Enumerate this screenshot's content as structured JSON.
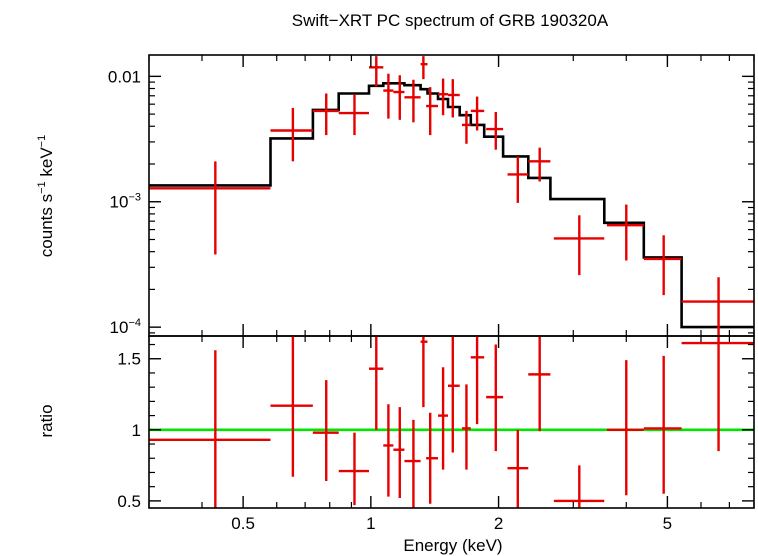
{
  "chart_data": {
    "type": "scatter",
    "title": "Swift−XRT PC spectrum of GRB 190320A",
    "xlabel": "Energy (keV)",
    "x_scale": "log",
    "xlim": [
      0.3,
      8.0
    ],
    "x_ticks": [
      {
        "value": 0.5,
        "label": "0.5"
      },
      {
        "value": 1,
        "label": "1"
      },
      {
        "value": 2,
        "label": "2"
      },
      {
        "value": 5,
        "label": "5"
      }
    ],
    "colors": {
      "data": "#e60000",
      "model": "#000000",
      "unity": "#00e600",
      "frame": "#000000"
    },
    "spectrum": {
      "ylabel_parts": [
        "counts s",
        "−1",
        " keV",
        "−1"
      ],
      "y_scale": "log",
      "ylim": [
        8.5e-05,
        0.0148
      ],
      "y_ticks": [
        {
          "value": 0.01,
          "label": "0.01"
        },
        {
          "value": 0.001,
          "base": "10",
          "exp": "−3"
        },
        {
          "value": 0.0001,
          "base": "10",
          "exp": "−4"
        }
      ],
      "data": [
        {
          "x": 0.43,
          "xlo": 0.3,
          "xhi": 0.58,
          "y": 0.00128,
          "ylo": 0.00038,
          "yhi": 0.0021
        },
        {
          "x": 0.655,
          "xlo": 0.58,
          "xhi": 0.73,
          "y": 0.0037,
          "ylo": 0.0021,
          "yhi": 0.0056
        },
        {
          "x": 0.785,
          "xlo": 0.73,
          "xhi": 0.84,
          "y": 0.0053,
          "ylo": 0.0034,
          "yhi": 0.0073
        },
        {
          "x": 0.915,
          "xlo": 0.84,
          "xhi": 0.99,
          "y": 0.0051,
          "ylo": 0.0034,
          "yhi": 0.0072
        },
        {
          "x": 1.03,
          "xlo": 0.99,
          "xhi": 1.07,
          "y": 0.0118,
          "ylo": 0.0083,
          "yhi": 0.0145
        },
        {
          "x": 1.1,
          "xlo": 1.07,
          "xhi": 1.13,
          "y": 0.0077,
          "ylo": 0.0046,
          "yhi": 0.0105
        },
        {
          "x": 1.17,
          "xlo": 1.13,
          "xhi": 1.2,
          "y": 0.0075,
          "ylo": 0.0045,
          "yhi": 0.0102
        },
        {
          "x": 1.26,
          "xlo": 1.2,
          "xhi": 1.31,
          "y": 0.0068,
          "ylo": 0.0043,
          "yhi": 0.0094
        },
        {
          "x": 1.33,
          "xlo": 1.31,
          "xhi": 1.36,
          "y": 0.0125,
          "ylo": 0.0095,
          "yhi": 0.0145
        },
        {
          "x": 1.38,
          "xlo": 1.35,
          "xhi": 1.44,
          "y": 0.0058,
          "ylo": 0.0034,
          "yhi": 0.0082
        },
        {
          "x": 1.48,
          "xlo": 1.44,
          "xhi": 1.52,
          "y": 0.0072,
          "ylo": 0.0049,
          "yhi": 0.0096
        },
        {
          "x": 1.56,
          "xlo": 1.52,
          "xhi": 1.62,
          "y": 0.0071,
          "ylo": 0.0047,
          "yhi": 0.0095
        },
        {
          "x": 1.68,
          "xlo": 1.64,
          "xhi": 1.72,
          "y": 0.0041,
          "ylo": 0.0029,
          "yhi": 0.0053
        },
        {
          "x": 1.78,
          "xlo": 1.72,
          "xhi": 1.85,
          "y": 0.0053,
          "ylo": 0.0037,
          "yhi": 0.0069
        },
        {
          "x": 1.97,
          "xlo": 1.87,
          "xhi": 2.05,
          "y": 0.0038,
          "ylo": 0.0026,
          "yhi": 0.0052
        },
        {
          "x": 2.22,
          "xlo": 2.1,
          "xhi": 2.35,
          "y": 0.00165,
          "ylo": 0.00098,
          "yhi": 0.0023
        },
        {
          "x": 2.5,
          "xlo": 2.35,
          "xhi": 2.65,
          "y": 0.0021,
          "ylo": 0.00145,
          "yhi": 0.0027
        },
        {
          "x": 3.1,
          "xlo": 2.7,
          "xhi": 3.55,
          "y": 0.00051,
          "ylo": 0.00026,
          "yhi": 0.00078
        },
        {
          "x": 4.0,
          "xlo": 3.6,
          "xhi": 4.4,
          "y": 0.00065,
          "ylo": 0.00034,
          "yhi": 0.00095
        },
        {
          "x": 4.9,
          "xlo": 4.4,
          "xhi": 5.4,
          "y": 0.00035,
          "ylo": 0.00018,
          "yhi": 0.00054
        },
        {
          "x": 6.6,
          "xlo": 5.4,
          "xhi": 8.0,
          "y": 0.00016,
          "ylo": 8.55e-05,
          "yhi": 0.00025
        }
      ],
      "model_steps": [
        {
          "xlo": 0.3,
          "xhi": 0.58,
          "y": 0.00135
        },
        {
          "xlo": 0.58,
          "xhi": 0.73,
          "y": 0.0032
        },
        {
          "xlo": 0.73,
          "xhi": 0.84,
          "y": 0.0054
        },
        {
          "xlo": 0.84,
          "xhi": 0.99,
          "y": 0.0073
        },
        {
          "xlo": 0.99,
          "xhi": 1.07,
          "y": 0.0084
        },
        {
          "xlo": 1.07,
          "xhi": 1.13,
          "y": 0.0088
        },
        {
          "xlo": 1.13,
          "xhi": 1.2,
          "y": 0.0088
        },
        {
          "xlo": 1.2,
          "xhi": 1.31,
          "y": 0.0085
        },
        {
          "xlo": 1.31,
          "xhi": 1.36,
          "y": 0.0079
        },
        {
          "xlo": 1.36,
          "xhi": 1.44,
          "y": 0.0073
        },
        {
          "xlo": 1.44,
          "xhi": 1.52,
          "y": 0.0066
        },
        {
          "xlo": 1.52,
          "xhi": 1.62,
          "y": 0.0057
        },
        {
          "xlo": 1.62,
          "xhi": 1.72,
          "y": 0.0049
        },
        {
          "xlo": 1.72,
          "xhi": 1.85,
          "y": 0.0041
        },
        {
          "xlo": 1.85,
          "xhi": 2.05,
          "y": 0.0033
        },
        {
          "xlo": 2.05,
          "xhi": 2.35,
          "y": 0.0023
        },
        {
          "xlo": 2.35,
          "xhi": 2.65,
          "y": 0.00155
        },
        {
          "xlo": 2.65,
          "xhi": 3.55,
          "y": 0.00105
        },
        {
          "xlo": 3.55,
          "xhi": 4.4,
          "y": 0.00068
        },
        {
          "xlo": 4.4,
          "xhi": 5.4,
          "y": 0.00036
        },
        {
          "xlo": 5.4,
          "xhi": 8.0,
          "y": 0.0001
        }
      ]
    },
    "ratio": {
      "ylabel": "ratio",
      "y_scale": "linear",
      "ylim": [
        0.45,
        1.66
      ],
      "reference": 1.0,
      "y_ticks": [
        {
          "value": 0.5,
          "label": "0.5"
        },
        {
          "value": 1,
          "label": "1"
        },
        {
          "value": 1.5,
          "label": "1.5"
        }
      ],
      "data": [
        {
          "x": 0.43,
          "xlo": 0.3,
          "xhi": 0.58,
          "y": 0.93,
          "ylo": 0.45,
          "yhi": 1.56
        },
        {
          "x": 0.655,
          "xlo": 0.58,
          "xhi": 0.73,
          "y": 1.17,
          "ylo": 0.67,
          "yhi": 1.66
        },
        {
          "x": 0.785,
          "xlo": 0.73,
          "xhi": 0.84,
          "y": 0.98,
          "ylo": 0.64,
          "yhi": 1.35
        },
        {
          "x": 0.915,
          "xlo": 0.84,
          "xhi": 0.99,
          "y": 0.71,
          "ylo": 0.47,
          "yhi": 0.98
        },
        {
          "x": 1.03,
          "xlo": 0.99,
          "xhi": 1.07,
          "y": 1.43,
          "ylo": 1.0,
          "yhi": 1.66
        },
        {
          "x": 1.1,
          "xlo": 1.07,
          "xhi": 1.13,
          "y": 0.89,
          "ylo": 0.53,
          "yhi": 1.18
        },
        {
          "x": 1.17,
          "xlo": 1.13,
          "xhi": 1.2,
          "y": 0.86,
          "ylo": 0.52,
          "yhi": 1.16
        },
        {
          "x": 1.26,
          "xlo": 1.2,
          "xhi": 1.31,
          "y": 0.78,
          "ylo": 0.45,
          "yhi": 1.07
        },
        {
          "x": 1.33,
          "xlo": 1.31,
          "xhi": 1.36,
          "y": 1.62,
          "ylo": 1.16,
          "yhi": 1.66
        },
        {
          "x": 1.38,
          "xlo": 1.35,
          "xhi": 1.44,
          "y": 0.8,
          "ylo": 0.48,
          "yhi": 1.12
        },
        {
          "x": 1.48,
          "xlo": 1.44,
          "xhi": 1.52,
          "y": 1.1,
          "ylo": 0.72,
          "yhi": 1.44
        },
        {
          "x": 1.56,
          "xlo": 1.52,
          "xhi": 1.62,
          "y": 1.31,
          "ylo": 0.84,
          "yhi": 1.66
        },
        {
          "x": 1.68,
          "xlo": 1.64,
          "xhi": 1.72,
          "y": 1.01,
          "ylo": 0.72,
          "yhi": 1.32
        },
        {
          "x": 1.78,
          "xlo": 1.72,
          "xhi": 1.85,
          "y": 1.51,
          "ylo": 1.04,
          "yhi": 1.66
        },
        {
          "x": 1.97,
          "xlo": 1.87,
          "xhi": 2.05,
          "y": 1.23,
          "ylo": 0.85,
          "yhi": 1.6
        },
        {
          "x": 2.22,
          "xlo": 2.1,
          "xhi": 2.35,
          "y": 0.73,
          "ylo": 0.45,
          "yhi": 1.0
        },
        {
          "x": 2.5,
          "xlo": 2.35,
          "xhi": 2.65,
          "y": 1.39,
          "ylo": 0.99,
          "yhi": 1.66
        },
        {
          "x": 3.1,
          "xlo": 2.7,
          "xhi": 3.55,
          "y": 0.5,
          "ylo": 0.45,
          "yhi": 0.75
        },
        {
          "x": 4.0,
          "xlo": 3.6,
          "xhi": 4.4,
          "y": 1.0,
          "ylo": 0.54,
          "yhi": 1.49
        },
        {
          "x": 4.9,
          "xlo": 4.4,
          "xhi": 5.4,
          "y": 1.01,
          "ylo": 0.55,
          "yhi": 1.52
        },
        {
          "x": 6.6,
          "xlo": 5.4,
          "xhi": 8.0,
          "y": 1.61,
          "ylo": 0.85,
          "yhi": 1.66
        }
      ]
    }
  }
}
